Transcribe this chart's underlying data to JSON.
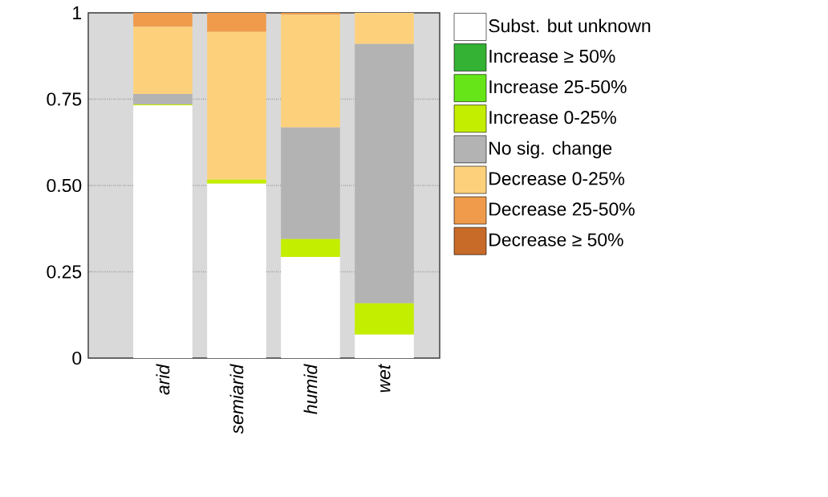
{
  "chart_data": {
    "type": "bar",
    "stacked": true,
    "categories": [
      "arid",
      "semiarid",
      "humid",
      "wet"
    ],
    "series": [
      {
        "name": "Subst. but unknown",
        "color": "#ffffff",
        "values": [
          0.732,
          0.505,
          0.293,
          0.068
        ]
      },
      {
        "name": "Increase ≥ 50%",
        "color": "#33b233",
        "values": [
          0,
          0,
          0,
          0
        ]
      },
      {
        "name": "Increase 25-50%",
        "color": "#66e619",
        "values": [
          0,
          0,
          0,
          0
        ]
      },
      {
        "name": "Increase 0-25%",
        "color": "#c4ee00",
        "values": [
          0.003,
          0.012,
          0.052,
          0.091
        ]
      },
      {
        "name": "No sig. change",
        "color": "#b3b3b3",
        "values": [
          0.03,
          0,
          0.323,
          0.751
        ]
      },
      {
        "name": "Decrease 0-25%",
        "color": "#fdd17c",
        "values": [
          0.195,
          0.428,
          0.327,
          0.09
        ]
      },
      {
        "name": "Decrease 25-50%",
        "color": "#ef9b4b",
        "values": [
          0.04,
          0.055,
          0.005,
          0
        ]
      },
      {
        "name": "Decrease ≥ 50%",
        "color": "#c86a28",
        "values": [
          0,
          0,
          0,
          0
        ]
      }
    ],
    "ylim": [
      0,
      1
    ],
    "yticks": [
      0,
      {
        "value": 0.25,
        "label": "0.25"
      },
      {
        "value": 0.5,
        "label": "0.50"
      },
      {
        "value": 0.75,
        "label": "0.75"
      },
      1
    ],
    "grid": "y",
    "legend": "right"
  }
}
